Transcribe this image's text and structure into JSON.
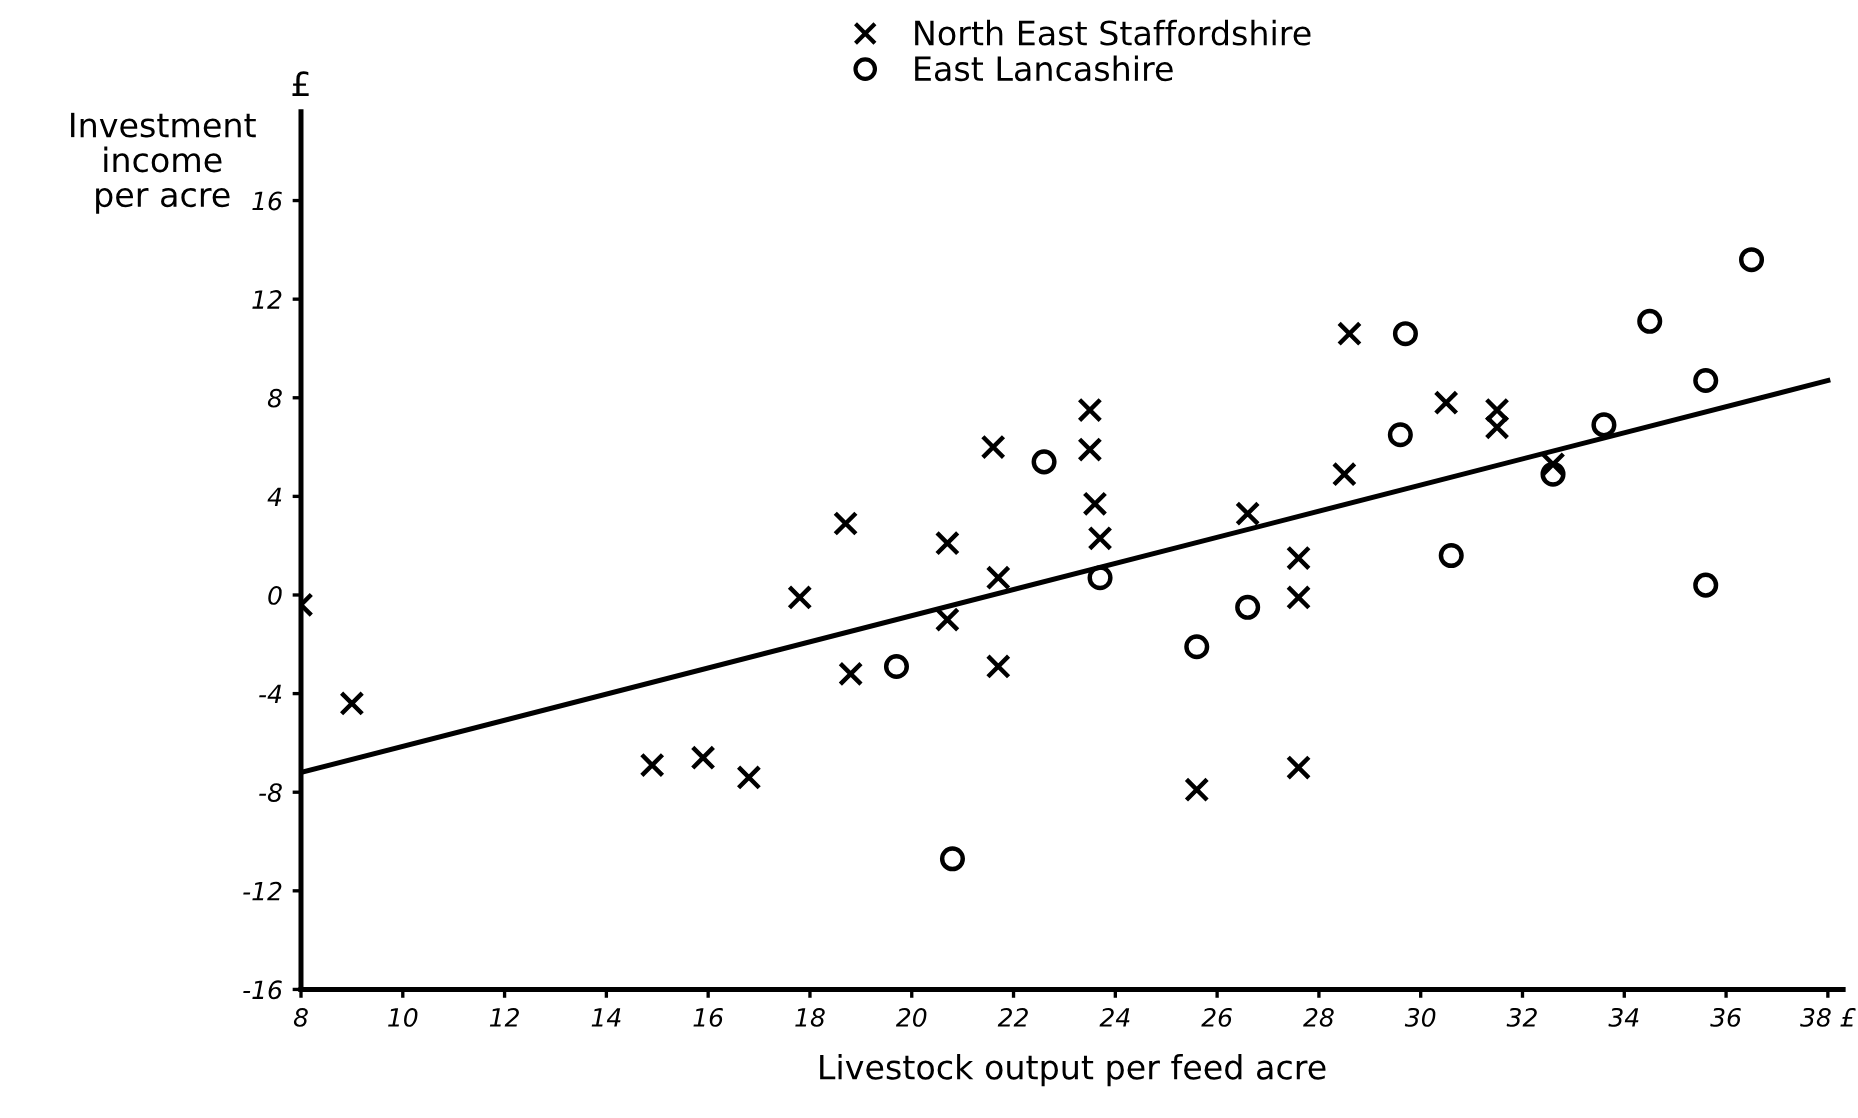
{
  "chart_data": {
    "type": "scatter",
    "xlabel": "Livestock output per feed acre",
    "ylabel": "Investment\nincome\nper acre",
    "annotations": [
      "£"
    ],
    "xlim": [
      8,
      38.3
    ],
    "ylim": [
      -16,
      19.6
    ],
    "xticks": [
      8,
      10,
      12,
      14,
      16,
      18,
      20,
      22,
      24,
      26,
      28,
      30,
      32,
      34,
      36,
      {
        "value": 38,
        "label": "38 £"
      }
    ],
    "yticks": [
      -16,
      -12,
      -8,
      -4,
      0,
      4,
      8,
      12,
      16
    ],
    "grid": false,
    "legend": "top",
    "series": [
      {
        "name": "North East Staffordshire",
        "color": "#000000",
        "marker": "cross",
        "x": [
          8,
          9,
          14.9,
          15.9,
          16.8,
          17.8,
          18.7,
          18.8,
          20.7,
          20.7,
          21.6,
          21.7,
          21.7,
          23.6,
          23.5,
          23.5,
          23.7,
          25.6,
          26.6,
          27.6,
          27.6,
          27.6,
          28.5,
          28.6,
          30.5,
          31.5,
          31.5,
          32.6
        ],
        "values": [
          -0.4,
          -4.4,
          -6.9,
          -6.6,
          -7.4,
          -0.1,
          2.9,
          -3.2,
          2.1,
          -1.0,
          6.0,
          0.7,
          -2.9,
          3.7,
          7.5,
          5.9,
          2.3,
          -7.9,
          3.3,
          1.5,
          -0.1,
          -7.0,
          4.9,
          10.6,
          7.8,
          7.5,
          6.8,
          5.3
        ]
      },
      {
        "name": "East Lancashire",
        "color": "#000000",
        "marker": "circle",
        "x": [
          19.7,
          20.8,
          22.6,
          23.7,
          25.6,
          26.6,
          29.6,
          29.7,
          30.6,
          32.6,
          33.6,
          34.5,
          35.6,
          35.6,
          36.5
        ],
        "values": [
          -2.9,
          -10.7,
          5.4,
          0.7,
          -2.1,
          -0.5,
          6.5,
          10.6,
          1.6,
          4.9,
          6.9,
          11.1,
          8.7,
          0.4,
          13.6
        ]
      },
      {
        "type": "line",
        "color": "#000000",
        "marker": "none",
        "x": [
          8,
          38
        ],
        "values": [
          -7.2,
          8.7
        ]
      }
    ]
  }
}
